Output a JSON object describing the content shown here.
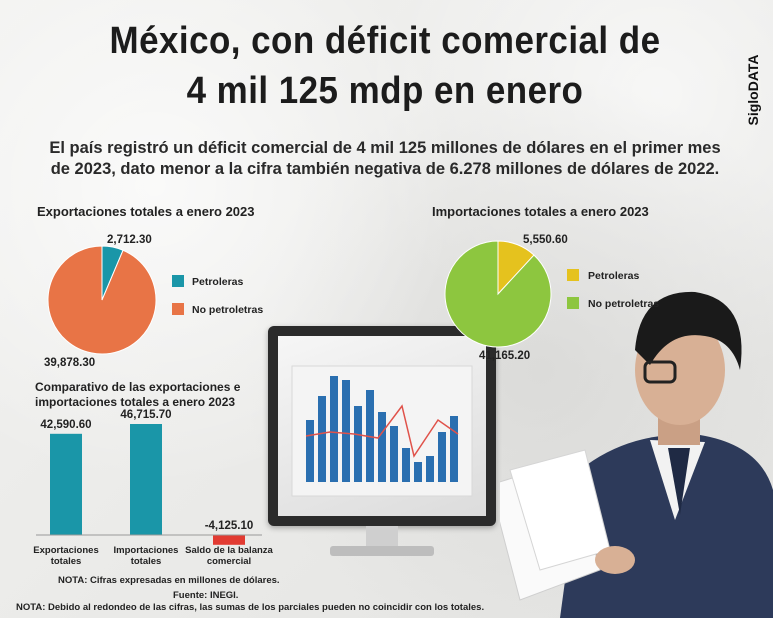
{
  "title_line1": "México, con déficit comercial de",
  "title_line2": "4 mil 125 mdp en enero",
  "brand": "SigloDATA",
  "subtitle_line1": "El país registró un déficit comercial de 4 mil 125 millones de dólares en el primer mes",
  "subtitle_line2": "de 2023, dato menor a la cifra también negativa de 6.278 millones de dólares de 2022.",
  "chart_data": [
    {
      "type": "pie",
      "title": "Exportaciones totales a enero 2023",
      "labels": [
        "Petroleras",
        "No petroletras"
      ],
      "values": [
        2712.3,
        39878.3
      ],
      "value_labels": [
        "2,712.30",
        "39,878.30"
      ],
      "colors": [
        "#1a96a8",
        "#e87446"
      ],
      "legend": "right"
    },
    {
      "type": "pie",
      "title": "Importaciones totales a enero 2023",
      "labels": [
        "Petroleras",
        "No petroletras"
      ],
      "values": [
        5550.6,
        41165.2
      ],
      "value_labels": [
        "5,550.60",
        "41,165.20"
      ],
      "colors": [
        "#e5c21e",
        "#8dc63f"
      ],
      "legend": "right"
    },
    {
      "type": "bar",
      "title_line1": "Comparativo de las exportaciones e",
      "title_line2": "importaciones totales a enero 2023",
      "categories": [
        [
          "Exportaciones",
          "totales"
        ],
        [
          "Importaciones",
          "totales"
        ],
        [
          "Saldo de la balanza",
          "comercial"
        ]
      ],
      "values": [
        42590.6,
        46715.7,
        -4125.1
      ],
      "value_labels": [
        "42,590.60",
        "46,715.70",
        "-4,125.10"
      ],
      "colors": [
        "#1a96a8",
        "#1a96a8",
        "#e23b32"
      ],
      "ylim": [
        -4125.1,
        46715.7
      ]
    }
  ],
  "note1": "NOTA: Cifras expresadas en millones de dólares.",
  "source": "Fuente: INEGI.",
  "note2": "NOTA: Debido al redondeo de las cifras, las sumas de los parciales pueden no coincidir con los totales."
}
